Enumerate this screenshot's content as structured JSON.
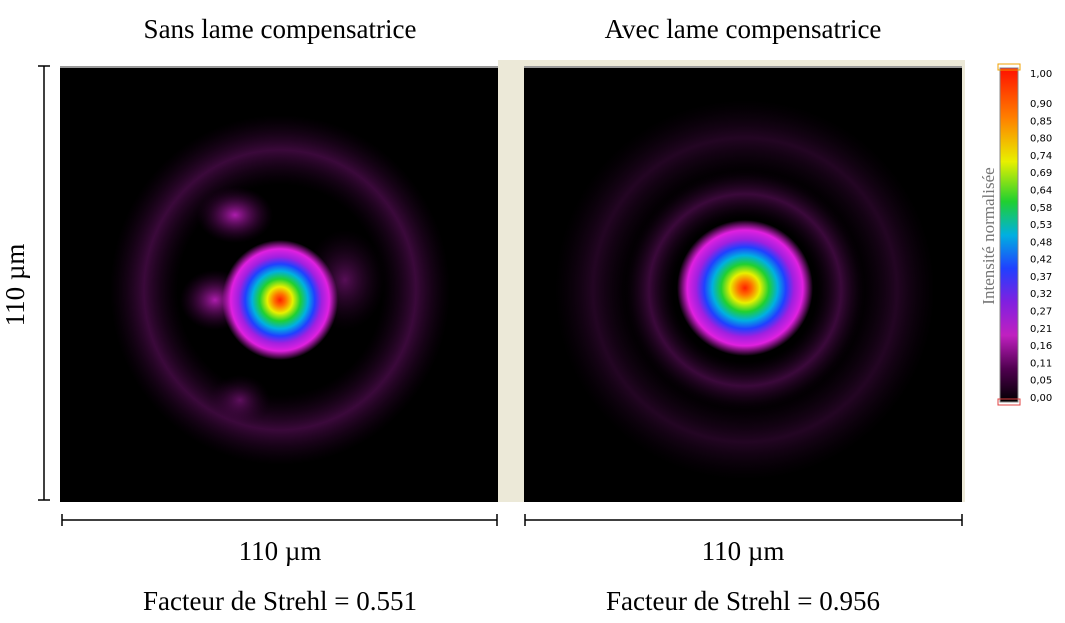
{
  "panels": [
    {
      "title": "Sans lame compensatrice",
      "scale_label": "110 µm",
      "strehl": "Facteur de Strehl = 0.551"
    },
    {
      "title": "Avec lame compensatrice",
      "scale_label": "110 µm",
      "strehl": "Facteur de Strehl =  0.956"
    }
  ],
  "vertical_scale_label": "110 µm",
  "colorbar": {
    "title": "Intensité normalisée",
    "labels": [
      "1,00",
      "0,90",
      "0,85",
      "0,80",
      "0,74",
      "0,69",
      "0,64",
      "0,58",
      "0,53",
      "0,48",
      "0,42",
      "0,37",
      "0,32",
      "0,27",
      "0,21",
      "0,16",
      "0,11",
      "0,05",
      "0,00"
    ]
  }
}
